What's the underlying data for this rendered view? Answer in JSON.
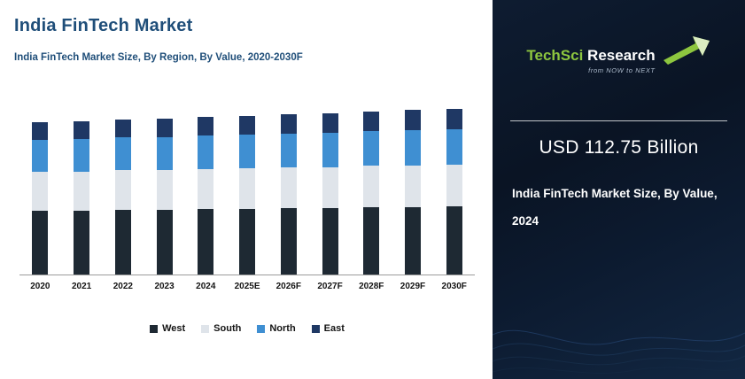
{
  "left": {
    "title": "India FinTech Market",
    "subtitle": "India FinTech Market  Size, By Region, By Value, 2020-2030F"
  },
  "chart_data": {
    "type": "bar",
    "stacked": true,
    "title": "India FinTech Market Size, By Region, By Value, 2020-2030F",
    "categories": [
      "2020",
      "2021",
      "2022",
      "2023",
      "2024",
      "2025E",
      "2026F",
      "2027F",
      "2028F",
      "2029F",
      "2030F"
    ],
    "series": [
      {
        "name": "West",
        "color": "#1e2933",
        "values": [
          72,
          72,
          73,
          73,
          74,
          74,
          75,
          75,
          76,
          76,
          77
        ]
      },
      {
        "name": "South",
        "color": "#dfe4ea",
        "values": [
          44,
          44,
          45,
          45,
          45,
          46,
          46,
          46,
          47,
          47,
          47
        ]
      },
      {
        "name": "North",
        "color": "#3f8fd2",
        "values": [
          36,
          37,
          37,
          37,
          38,
          38,
          38,
          39,
          39,
          40,
          40
        ]
      },
      {
        "name": "East",
        "color": "#1f3864",
        "values": [
          20,
          20,
          20,
          21,
          21,
          21,
          22,
          22,
          22,
          23,
          23
        ]
      }
    ],
    "xlabel": "",
    "ylabel": "",
    "ylim": [
      0,
      200
    ],
    "y_axis": "hidden",
    "grid": false,
    "legend_position": "bottom"
  },
  "panel": {
    "logo": {
      "brand_1": "TechSci",
      "brand_2": "Research",
      "tagline": "from NOW to NEXT"
    },
    "value": "USD 112.75 Billion",
    "caption_line1": "India FinTech Market  Size, By Value,",
    "caption_line2": "2024"
  },
  "colors": {
    "heading": "#1f4e79",
    "panel_bg": "#0c1a2f",
    "logo_green": "#8dc63f"
  }
}
